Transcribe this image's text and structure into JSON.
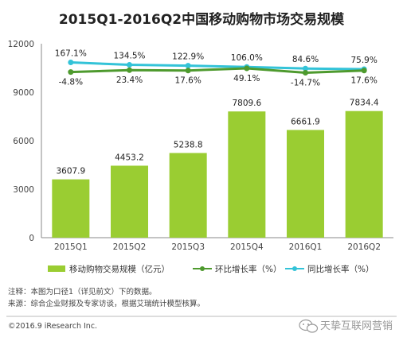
{
  "chart_data": {
    "type": "bar",
    "title": "2015Q1-2016Q2中国移动购物市场交易规模",
    "categories": [
      "2015Q1",
      "2015Q2",
      "2015Q3",
      "2015Q4",
      "2016Q1",
      "2016Q2"
    ],
    "ylim": [
      0,
      12000
    ],
    "yticks": [
      "0",
      "3000",
      "6000",
      "9000",
      "12000"
    ],
    "grid": false,
    "legend_position": "bottom",
    "series": [
      {
        "name": "移动购物交易规模（亿元）",
        "type": "bar",
        "color": "#9ACD32",
        "values": [
          3607.9,
          4453.2,
          5238.8,
          7809.6,
          6661.9,
          7834.4
        ],
        "labels": [
          "3607.9",
          "4453.2",
          "5238.8",
          "7809.6",
          "6661.9",
          "7834.4"
        ]
      },
      {
        "name": "环比增长率（%）",
        "type": "line",
        "color": "#4E9A2E",
        "values": [
          -4.8,
          23.4,
          17.6,
          49.1,
          -14.7,
          17.6
        ],
        "labels": [
          "-4.8%",
          "23.4%",
          "17.6%",
          "49.1%",
          "-14.7%",
          "17.6%"
        ]
      },
      {
        "name": "同比增长率（%）",
        "type": "line",
        "color": "#33C3D8",
        "values": [
          167.1,
          134.5,
          122.9,
          106.0,
          84.6,
          75.9
        ],
        "labels": [
          "167.1%",
          "134.5%",
          "122.9%",
          "106.0%",
          "84.6%",
          "75.9%"
        ]
      }
    ]
  },
  "notes": [
    "注释：本图为口径1（详见前文）下的数据。",
    "来源：综合企业财报及专家访谈，根据艾瑞统计模型核算。"
  ],
  "copyright": "©2016.9 iResearch Inc.",
  "watermark": "天挚互联网营销"
}
